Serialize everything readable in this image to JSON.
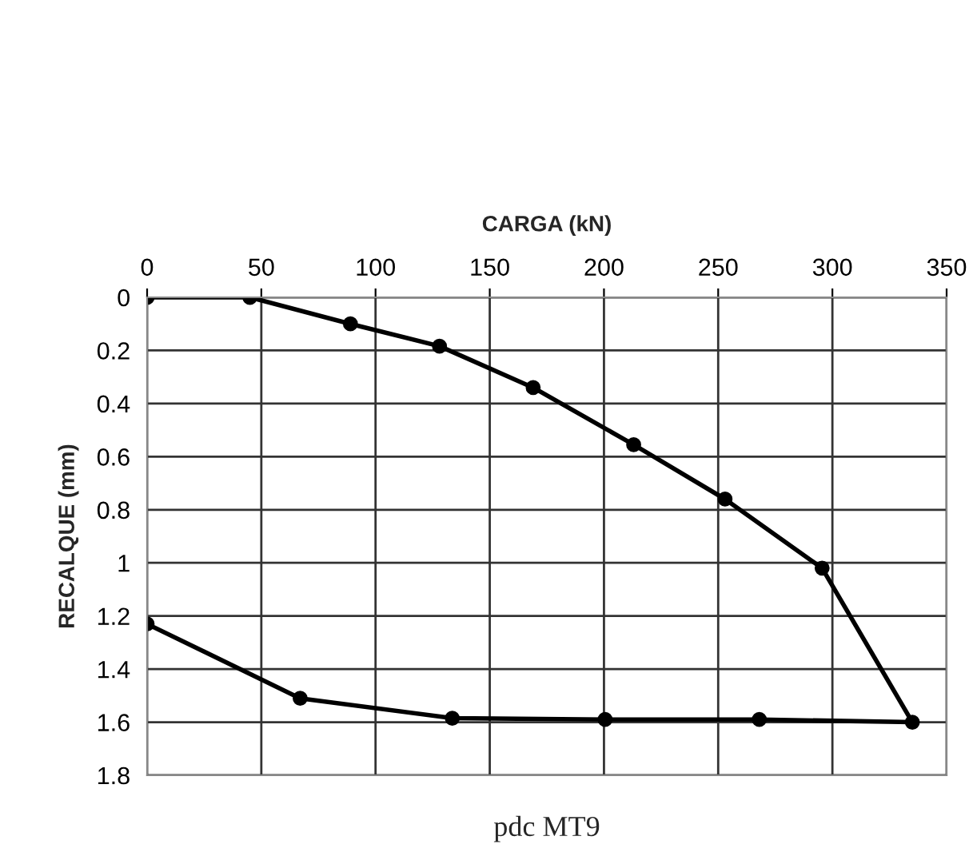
{
  "chart_data": {
    "type": "line",
    "xlabel": "CARGA (kN)",
    "ylabel": "RECALQUE (mm)",
    "annotations": [
      "pdc MT9"
    ],
    "series": [
      {
        "color": "#000000",
        "x": [
          0,
          45,
          89,
          128,
          169,
          213,
          253,
          295.5,
          335,
          268,
          200.5,
          133.6,
          67,
          0
        ],
        "values": [
          0,
          0,
          0.1,
          0.184,
          0.34,
          0.555,
          0.76,
          1.02,
          1.6,
          1.59,
          1.59,
          1.585,
          1.51,
          1.23
        ]
      }
    ],
    "xlim": [
      0,
      350
    ],
    "xticks": [
      0,
      50,
      100,
      150,
      200,
      250,
      300,
      350
    ],
    "ylim": [
      1.8,
      0
    ],
    "yticks": [
      {
        "value": 0,
        "label": "0"
      },
      0.2,
      0.4,
      0.6,
      0.8,
      {
        "value": 1,
        "label": "1"
      },
      1.2,
      1.4,
      1.6,
      1.8
    ],
    "grid": true,
    "marker": "circle",
    "line_style": "solid"
  }
}
